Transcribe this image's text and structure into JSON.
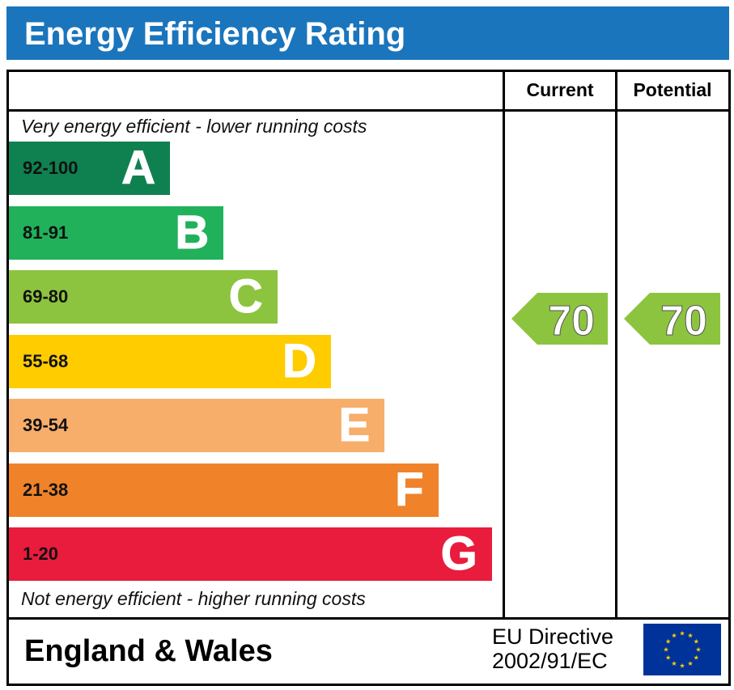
{
  "title": "Energy Efficiency Rating",
  "columns": {
    "current": "Current",
    "potential": "Potential"
  },
  "top_note": "Very energy efficient - lower running costs",
  "bottom_note": "Not energy efficient - higher running costs",
  "footer": {
    "region": "England & Wales",
    "directive_line1": "EU Directive",
    "directive_line2": "2002/91/EC"
  },
  "icons": {
    "flag": "eu-flag-icon"
  },
  "chart_data": {
    "type": "bar",
    "categories": [
      "A",
      "B",
      "C",
      "D",
      "E",
      "F",
      "G"
    ],
    "ranges": [
      "92-100",
      "81-91",
      "69-80",
      "55-68",
      "39-54",
      "21-38",
      "1-20"
    ],
    "colors": [
      "#0f8150",
      "#21b15a",
      "#8cc43f",
      "#ffcc00",
      "#f7ae6b",
      "#f0822a",
      "#e91c3d"
    ],
    "current": {
      "value": 70,
      "band": "C",
      "color": "#8cc43f"
    },
    "potential": {
      "value": 70,
      "band": "C",
      "color": "#8cc43f"
    }
  }
}
